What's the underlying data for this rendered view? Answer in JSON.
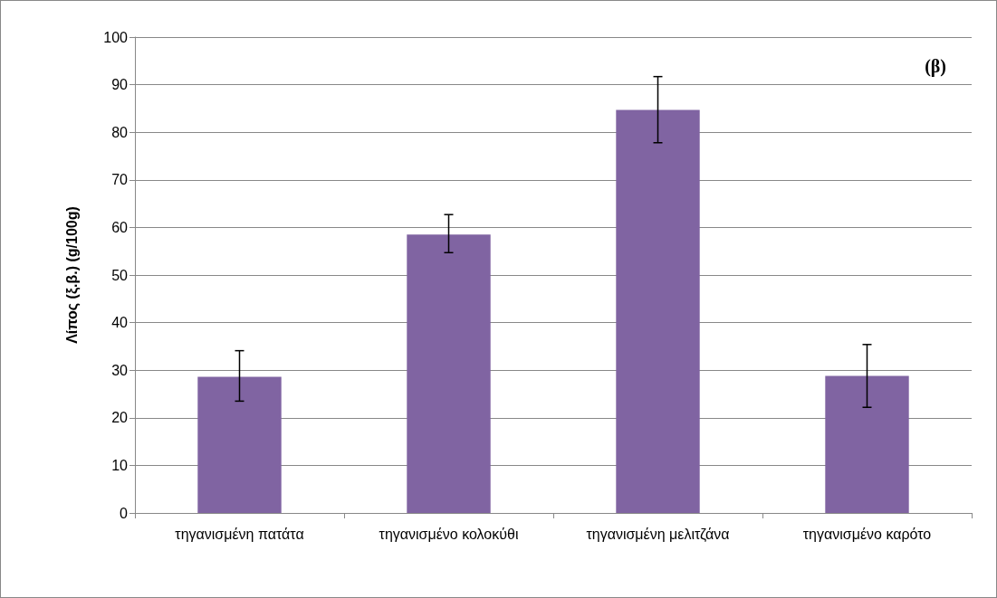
{
  "chart_data": {
    "type": "bar",
    "ylabel": "Λίπος (ξ.β.) (g/100g)",
    "categories": [
      "τηγανισμένη πατάτα",
      "τηγανισμένο κολοκύθι",
      "τηγανισμένη μελιτζάνα",
      "τηγανισμένο καρότο"
    ],
    "values": [
      28.6,
      58.5,
      84.7,
      28.8
    ],
    "errors": [
      [
        23.5,
        34.1
      ],
      [
        54.7,
        62.7
      ],
      [
        77.8,
        91.7
      ],
      [
        22.2,
        35.4
      ]
    ],
    "color": "#8064a2",
    "ylim": [
      0,
      100
    ],
    "yticks": [
      0,
      10,
      20,
      30,
      40,
      50,
      60,
      70,
      80,
      90,
      100
    ],
    "grid": "y",
    "annotations": [
      "(β)"
    ]
  }
}
